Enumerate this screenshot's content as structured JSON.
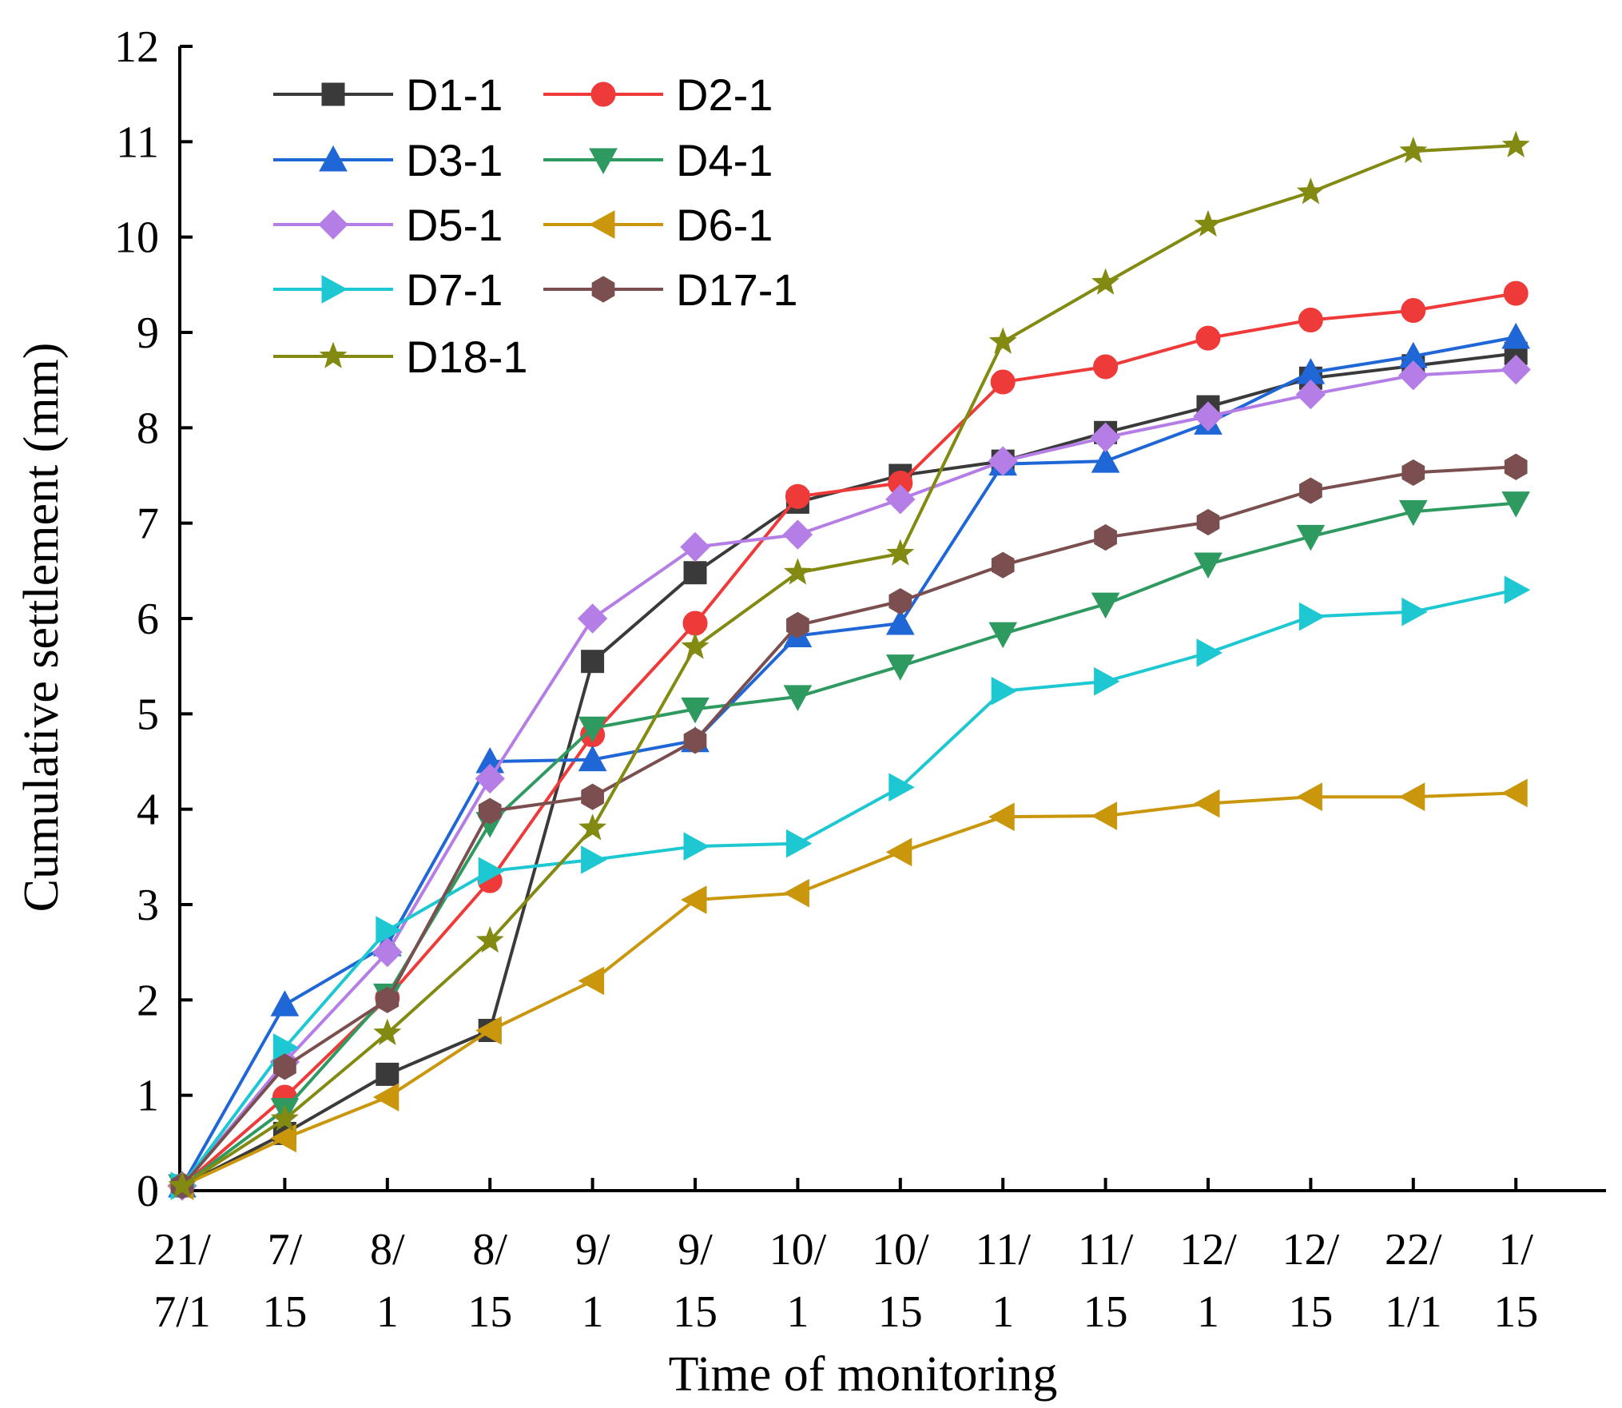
{
  "chart_data": {
    "type": "line",
    "xlabel": "Time of monitoring",
    "ylabel": "Cumulative settlement (mm)",
    "ylim": [
      0,
      12
    ],
    "yticks": [
      0,
      1,
      2,
      3,
      4,
      5,
      6,
      7,
      8,
      9,
      10,
      11,
      12
    ],
    "categories": [
      [
        "21/",
        "7/1"
      ],
      [
        "7/",
        "15"
      ],
      [
        "8/",
        "1"
      ],
      [
        "8/",
        "15"
      ],
      [
        "9/",
        "1"
      ],
      [
        "9/",
        "15"
      ],
      [
        "10/",
        "1"
      ],
      [
        "10/",
        "15"
      ],
      [
        "11/",
        "1"
      ],
      [
        "11/",
        "15"
      ],
      [
        "12/",
        "1"
      ],
      [
        "12/",
        "15"
      ],
      [
        "22/",
        "1/1"
      ],
      [
        "1/",
        "15"
      ]
    ],
    "series": [
      {
        "name": "D1-1",
        "color": "#3a3a3a",
        "marker": "square",
        "values": [
          0.05,
          0.6,
          1.22,
          1.68,
          5.55,
          6.48,
          7.22,
          7.5,
          7.65,
          7.95,
          8.22,
          8.52,
          8.65,
          8.78
        ]
      },
      {
        "name": "D2-1",
        "color": "#ef3a3a",
        "marker": "circle",
        "values": [
          0.05,
          0.98,
          2.02,
          3.25,
          4.78,
          5.95,
          7.28,
          7.42,
          8.48,
          8.64,
          8.94,
          9.13,
          9.23,
          9.41
        ]
      },
      {
        "name": "D3-1",
        "color": "#1f66d6",
        "marker": "triangle-up",
        "values": [
          0.05,
          1.95,
          2.58,
          4.5,
          4.52,
          4.72,
          5.82,
          5.95,
          7.62,
          7.65,
          8.05,
          8.58,
          8.75,
          8.95
        ]
      },
      {
        "name": "D4-1",
        "color": "#2e9a60",
        "marker": "triangle-down",
        "values": [
          0.05,
          0.85,
          2.05,
          3.85,
          4.85,
          5.05,
          5.18,
          5.5,
          5.84,
          6.15,
          6.57,
          6.86,
          7.12,
          7.21
        ]
      },
      {
        "name": "D5-1",
        "color": "#b57ee6",
        "marker": "diamond",
        "values": [
          0.05,
          1.35,
          2.5,
          4.32,
          6.0,
          6.75,
          6.88,
          7.25,
          7.65,
          7.9,
          8.12,
          8.35,
          8.55,
          8.61
        ]
      },
      {
        "name": "D6-1",
        "color": "#c9960c",
        "marker": "triangle-left",
        "values": [
          0.05,
          0.55,
          0.98,
          1.68,
          2.2,
          3.05,
          3.12,
          3.55,
          3.92,
          3.93,
          4.06,
          4.13,
          4.13,
          4.17
        ]
      },
      {
        "name": "D7-1",
        "color": "#1ec8d2",
        "marker": "triangle-right",
        "values": [
          0.05,
          1.5,
          2.73,
          3.35,
          3.47,
          3.61,
          3.64,
          4.23,
          5.24,
          5.34,
          5.64,
          6.02,
          6.07,
          6.3
        ]
      },
      {
        "name": "D17-1",
        "color": "#7b4f4f",
        "marker": "hexagon",
        "values": [
          0.05,
          1.3,
          2.0,
          3.98,
          4.13,
          4.72,
          5.93,
          6.18,
          6.56,
          6.85,
          7.01,
          7.34,
          7.53,
          7.59
        ]
      },
      {
        "name": "D18-1",
        "color": "#828a12",
        "marker": "star",
        "values": [
          0.05,
          0.75,
          1.65,
          2.62,
          3.8,
          5.7,
          6.48,
          6.68,
          8.9,
          9.52,
          10.13,
          10.47,
          10.9,
          10.96
        ]
      }
    ]
  }
}
